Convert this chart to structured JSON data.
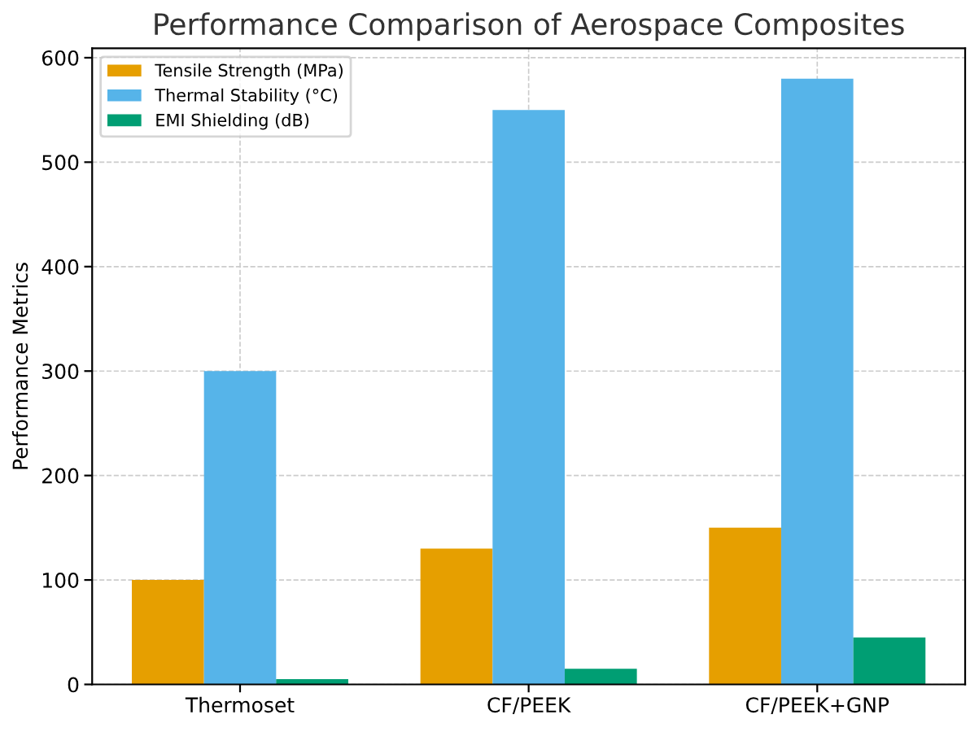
{
  "chart_data": {
    "type": "bar",
    "title": "Performance Comparison of Aerospace Composites",
    "ylabel": "Performance Metrics",
    "categories": [
      "Thermoset",
      "CF/PEEK",
      "CF/PEEK+GNP"
    ],
    "series": [
      {
        "name": "Tensile Strength (MPa)",
        "color": "#e69f00",
        "values": [
          100,
          130,
          150
        ]
      },
      {
        "name": "Thermal Stability (°C)",
        "color": "#56b4e9",
        "values": [
          300,
          550,
          580
        ]
      },
      {
        "name": "EMI Shielding (dB)",
        "color": "#009e73",
        "values": [
          5,
          15,
          45
        ]
      }
    ],
    "ylim": [
      0,
      609
    ],
    "yticks": [
      0,
      100,
      200,
      300,
      400,
      500,
      600
    ],
    "grid": true,
    "legend": "top left"
  }
}
